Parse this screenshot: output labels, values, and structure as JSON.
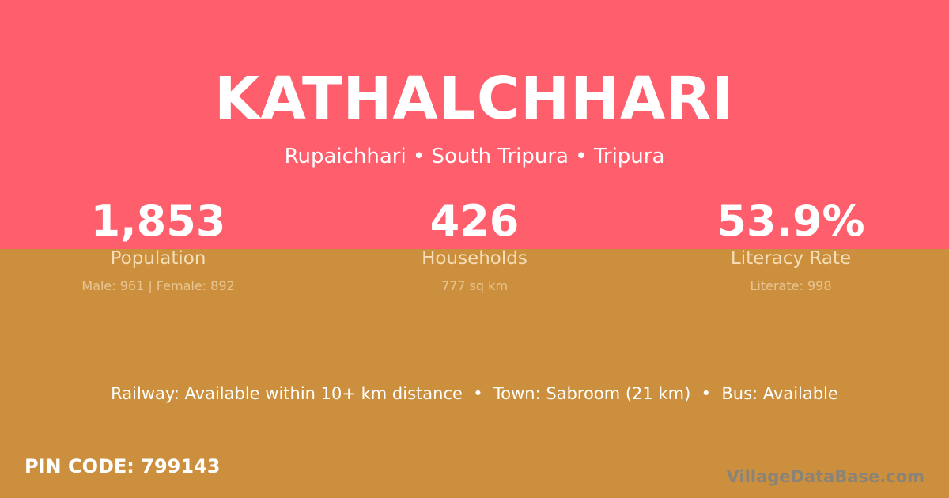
{
  "colors": {
    "top_background": "#ff5f6d",
    "bottom_background": "#cc8f3e"
  },
  "title": "KATHALCHHARI",
  "subtitle": "Rupaichhari • South Tripura • Tripura",
  "stats": [
    {
      "value": "1,853",
      "label": "Population",
      "detail": "Male: 961 | Female: 892"
    },
    {
      "value": "426",
      "label": "Households",
      "detail": "777 sq km"
    },
    {
      "value": "53.9%",
      "label": "Literacy Rate",
      "detail": "Literate: 998"
    }
  ],
  "facts": "Railway: Available within 10+ km distance  •  Town: Sabroom (21 km)  •  Bus: Available",
  "pin_code": "PIN CODE: 799143",
  "brand": "VillageDataBase.com"
}
